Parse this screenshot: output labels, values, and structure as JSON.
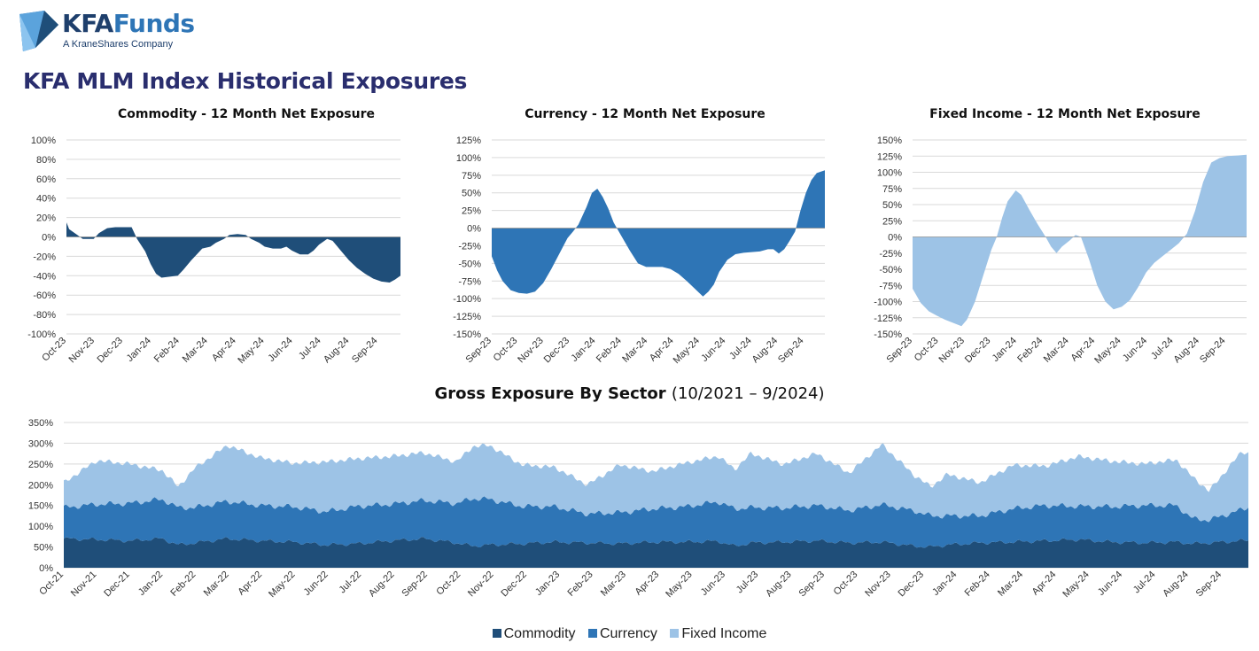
{
  "brand": {
    "logo_kfa": "KFA",
    "logo_funds": "Funds",
    "tagline": "A KraneShares Company"
  },
  "page": {
    "title": "KFA MLM Index Historical Exposures"
  },
  "colors": {
    "commodity": "#1f4e79",
    "currency": "#2e75b6",
    "fixed_income": "#9dc3e6",
    "grid": "#d9d9d9"
  },
  "chart_data": [
    {
      "id": "commodity",
      "type": "area",
      "title": "Commodity - 12 Month Net Exposure",
      "color": "#1f4e79",
      "ylim": [
        -100,
        100
      ],
      "yticks": [
        100,
        80,
        60,
        40,
        20,
        0,
        -20,
        -40,
        -60,
        -80,
        -100
      ],
      "tick_format": "percent",
      "x_tick_labels": [
        "Oct-23",
        "Nov-23",
        "Dec-23",
        "Jan-24",
        "Feb-24",
        "Mar-24",
        "Apr-24",
        "May-24",
        "Jun-24",
        "Jul-24",
        "Aug-24",
        "Sep-24"
      ],
      "x_range": [
        0,
        12.3
      ],
      "grid": true,
      "points": [
        [
          0,
          15
        ],
        [
          0.1,
          8
        ],
        [
          0.4,
          2
        ],
        [
          0.6,
          -2
        ],
        [
          1,
          -2
        ],
        [
          1.2,
          4
        ],
        [
          1.5,
          9
        ],
        [
          1.8,
          10
        ],
        [
          2.1,
          10
        ],
        [
          2.4,
          10
        ],
        [
          2.6,
          -2
        ],
        [
          2.9,
          -15
        ],
        [
          3.1,
          -28
        ],
        [
          3.3,
          -38
        ],
        [
          3.5,
          -42
        ],
        [
          3.8,
          -41
        ],
        [
          4.1,
          -40
        ],
        [
          4.3,
          -34
        ],
        [
          4.6,
          -24
        ],
        [
          4.8,
          -18
        ],
        [
          5.0,
          -12
        ],
        [
          5.3,
          -10
        ],
        [
          5.5,
          -6
        ],
        [
          5.8,
          -2
        ],
        [
          6.0,
          2
        ],
        [
          6.3,
          3
        ],
        [
          6.6,
          2
        ],
        [
          6.8,
          -2
        ],
        [
          7.1,
          -6
        ],
        [
          7.3,
          -10
        ],
        [
          7.6,
          -12
        ],
        [
          7.9,
          -12
        ],
        [
          8.1,
          -10
        ],
        [
          8.3,
          -14
        ],
        [
          8.6,
          -18
        ],
        [
          8.9,
          -18
        ],
        [
          9.1,
          -14
        ],
        [
          9.3,
          -8
        ],
        [
          9.6,
          -2
        ],
        [
          9.8,
          -4
        ],
        [
          10.1,
          -14
        ],
        [
          10.4,
          -24
        ],
        [
          10.7,
          -32
        ],
        [
          11.0,
          -38
        ],
        [
          11.3,
          -43
        ],
        [
          11.6,
          -46
        ],
        [
          11.9,
          -47
        ],
        [
          12.1,
          -44
        ],
        [
          12.3,
          -40
        ]
      ]
    },
    {
      "id": "currency",
      "type": "area",
      "title": "Currency - 12 Month Net Exposure",
      "color": "#2e75b6",
      "ylim": [
        -150,
        125
      ],
      "yticks": [
        125,
        100,
        75,
        50,
        25,
        0,
        -25,
        -50,
        -75,
        -100,
        -125,
        -150
      ],
      "tick_format": "percent",
      "x_tick_labels": [
        "Sep-23",
        "Oct-23",
        "Nov-23",
        "Dec-23",
        "Jan-24",
        "Feb-24",
        "Mar-24",
        "Apr-24",
        "May-24",
        "Jun-24",
        "Jul-24",
        "Aug-24",
        "Sep-24"
      ],
      "x_range": [
        0,
        12.3
      ],
      "grid": true,
      "points": [
        [
          0,
          -40
        ],
        [
          0.2,
          -60
        ],
        [
          0.4,
          -75
        ],
        [
          0.7,
          -88
        ],
        [
          1,
          -92
        ],
        [
          1.3,
          -93
        ],
        [
          1.6,
          -90
        ],
        [
          1.9,
          -78
        ],
        [
          2.2,
          -58
        ],
        [
          2.5,
          -36
        ],
        [
          2.8,
          -14
        ],
        [
          3.0,
          -5
        ],
        [
          3.2,
          5
        ],
        [
          3.5,
          30
        ],
        [
          3.7,
          50
        ],
        [
          3.9,
          56
        ],
        [
          4.1,
          44
        ],
        [
          4.3,
          28
        ],
        [
          4.5,
          8
        ],
        [
          4.8,
          -12
        ],
        [
          5.1,
          -32
        ],
        [
          5.4,
          -50
        ],
        [
          5.7,
          -55
        ],
        [
          6.0,
          -55
        ],
        [
          6.3,
          -55
        ],
        [
          6.6,
          -58
        ],
        [
          6.9,
          -65
        ],
        [
          7.2,
          -75
        ],
        [
          7.5,
          -86
        ],
        [
          7.8,
          -97
        ],
        [
          8.0,
          -90
        ],
        [
          8.2,
          -80
        ],
        [
          8.4,
          -62
        ],
        [
          8.7,
          -45
        ],
        [
          9.0,
          -37
        ],
        [
          9.3,
          -35
        ],
        [
          9.6,
          -34
        ],
        [
          9.9,
          -33
        ],
        [
          10.2,
          -30
        ],
        [
          10.4,
          -30
        ],
        [
          10.6,
          -36
        ],
        [
          10.8,
          -30
        ],
        [
          11.0,
          -18
        ],
        [
          11.2,
          -5
        ],
        [
          11.4,
          25
        ],
        [
          11.6,
          50
        ],
        [
          11.8,
          68
        ],
        [
          12.0,
          78
        ],
        [
          12.3,
          82
        ]
      ]
    },
    {
      "id": "fixed_income",
      "type": "area",
      "title": "Fixed Income - 12 Month Net Exposure",
      "color": "#9dc3e6",
      "ylim": [
        -150,
        150
      ],
      "yticks": [
        150,
        125,
        100,
        75,
        50,
        25,
        0,
        -25,
        -50,
        -75,
        -100,
        -125,
        -150
      ],
      "tick_format": "percent",
      "x_tick_labels": [
        "Sep-23",
        "Oct-23",
        "Nov-23",
        "Dec-23",
        "Jan-24",
        "Feb-24",
        "Mar-24",
        "Apr-24",
        "May-24",
        "Jun-24",
        "Jul-24",
        "Aug-24",
        "Sep-24"
      ],
      "x_range": [
        0,
        12.3
      ],
      "grid": true,
      "points": [
        [
          0,
          -80
        ],
        [
          0.3,
          -102
        ],
        [
          0.6,
          -115
        ],
        [
          0.9,
          -122
        ],
        [
          1.2,
          -128
        ],
        [
          1.5,
          -133
        ],
        [
          1.8,
          -138
        ],
        [
          2.0,
          -128
        ],
        [
          2.3,
          -100
        ],
        [
          2.6,
          -60
        ],
        [
          2.9,
          -20
        ],
        [
          3.1,
          0
        ],
        [
          3.3,
          30
        ],
        [
          3.5,
          55
        ],
        [
          3.8,
          72
        ],
        [
          4.0,
          65
        ],
        [
          4.3,
          42
        ],
        [
          4.6,
          20
        ],
        [
          4.9,
          0
        ],
        [
          5.1,
          -15
        ],
        [
          5.3,
          -25
        ],
        [
          5.5,
          -15
        ],
        [
          5.8,
          -5
        ],
        [
          6.0,
          3
        ],
        [
          6.2,
          0
        ],
        [
          6.5,
          -35
        ],
        [
          6.8,
          -75
        ],
        [
          7.1,
          -100
        ],
        [
          7.4,
          -112
        ],
        [
          7.7,
          -108
        ],
        [
          8.0,
          -98
        ],
        [
          8.3,
          -78
        ],
        [
          8.6,
          -55
        ],
        [
          8.9,
          -40
        ],
        [
          9.2,
          -30
        ],
        [
          9.5,
          -20
        ],
        [
          9.8,
          -10
        ],
        [
          10.1,
          5
        ],
        [
          10.4,
          40
        ],
        [
          10.7,
          85
        ],
        [
          11.0,
          115
        ],
        [
          11.3,
          122
        ],
        [
          11.6,
          125
        ],
        [
          12.0,
          126
        ],
        [
          12.3,
          127
        ]
      ]
    },
    {
      "id": "gross",
      "type": "area",
      "stacked": true,
      "title": "Gross Exposure By Sector",
      "subtitle": "(10/2021 – 9/2024)",
      "ylim": [
        0,
        350
      ],
      "yticks": [
        350,
        300,
        250,
        200,
        150,
        100,
        50,
        0
      ],
      "tick_format": "percent",
      "x_tick_labels": [
        "Oct-21",
        "Nov-21",
        "Dec-21",
        "Jan-22",
        "Feb-22",
        "Mar-22",
        "Apr-22",
        "May-22",
        "Jun-22",
        "Jul-22",
        "Aug-22",
        "Sep-22",
        "Oct-22",
        "Nov-22",
        "Dec-22",
        "Jan-23",
        "Feb-23",
        "Mar-23",
        "Apr-23",
        "May-23",
        "Jun-23",
        "Jul-23",
        "Aug-23",
        "Sep-23",
        "Oct-23",
        "Nov-23",
        "Dec-23",
        "Jan-24",
        "Feb-24",
        "Mar-24",
        "Apr-24",
        "May-24",
        "Jun-24",
        "Jul-24",
        "Aug-24",
        "Sep-24"
      ],
      "x_range": [
        0,
        36.2
      ],
      "grid": true,
      "legend_position": "bottom-center",
      "series": [
        {
          "name": "Commodity",
          "color": "#1f4e79",
          "points": [
            [
              0,
              70
            ],
            [
              1,
              68
            ],
            [
              2,
              65
            ],
            [
              3,
              70
            ],
            [
              3.5,
              55
            ],
            [
              4,
              60
            ],
            [
              5,
              70
            ],
            [
              6,
              65
            ],
            [
              7,
              62
            ],
            [
              8,
              55
            ],
            [
              9,
              58
            ],
            [
              10,
              65
            ],
            [
              11,
              70
            ],
            [
              12,
              60
            ],
            [
              12.5,
              52
            ],
            [
              13,
              55
            ],
            [
              14,
              58
            ],
            [
              15,
              62
            ],
            [
              16,
              60
            ],
            [
              17,
              58
            ],
            [
              18,
              62
            ],
            [
              19,
              62
            ],
            [
              20,
              64
            ],
            [
              20.5,
              52
            ],
            [
              21,
              60
            ],
            [
              22,
              62
            ],
            [
              23,
              65
            ],
            [
              24,
              60
            ],
            [
              25,
              62
            ],
            [
              26,
              52
            ],
            [
              26.5,
              50
            ],
            [
              27,
              55
            ],
            [
              28,
              60
            ],
            [
              29,
              62
            ],
            [
              30,
              65
            ],
            [
              31,
              68
            ],
            [
              32,
              62
            ],
            [
              33,
              60
            ],
            [
              34,
              62
            ],
            [
              34.5,
              58
            ],
            [
              35,
              60
            ],
            [
              36,
              65
            ],
            [
              36.2,
              66
            ]
          ]
        },
        {
          "name": "Currency",
          "color": "#2e75b6",
          "points": [
            [
              0,
              75
            ],
            [
              1,
              85
            ],
            [
              2,
              90
            ],
            [
              3,
              95
            ],
            [
              3.5,
              90
            ],
            [
              4,
              85
            ],
            [
              5,
              90
            ],
            [
              6,
              85
            ],
            [
              7,
              85
            ],
            [
              8,
              80
            ],
            [
              9,
              90
            ],
            [
              10,
              88
            ],
            [
              11,
              92
            ],
            [
              12,
              95
            ],
            [
              12.5,
              115
            ],
            [
              13,
              110
            ],
            [
              14,
              90
            ],
            [
              15,
              85
            ],
            [
              16,
              70
            ],
            [
              17,
              75
            ],
            [
              18,
              80
            ],
            [
              19,
              85
            ],
            [
              20,
              95
            ],
            [
              20.5,
              90
            ],
            [
              21,
              85
            ],
            [
              22,
              82
            ],
            [
              23,
              85
            ],
            [
              24,
              78
            ],
            [
              25,
              90
            ],
            [
              26,
              85
            ],
            [
              26.5,
              75
            ],
            [
              27,
              70
            ],
            [
              28,
              65
            ],
            [
              29,
              80
            ],
            [
              30,
              85
            ],
            [
              31,
              80
            ],
            [
              32,
              85
            ],
            [
              33,
              90
            ],
            [
              34,
              88
            ],
            [
              34.5,
              60
            ],
            [
              35,
              55
            ],
            [
              36,
              75
            ],
            [
              36.2,
              80
            ]
          ]
        },
        {
          "name": "Fixed Income",
          "color": "#9dc3e6",
          "points": [
            [
              0,
              60
            ],
            [
              1,
              105
            ],
            [
              2,
              95
            ],
            [
              3,
              70
            ],
            [
              3.5,
              50
            ],
            [
              4,
              95
            ],
            [
              5,
              135
            ],
            [
              6,
              115
            ],
            [
              7,
              105
            ],
            [
              8,
              120
            ],
            [
              9,
              115
            ],
            [
              10,
              115
            ],
            [
              11,
              115
            ],
            [
              12,
              100
            ],
            [
              12.5,
              125
            ],
            [
              13,
              130
            ],
            [
              14,
              100
            ],
            [
              15,
              95
            ],
            [
              16,
              70
            ],
            [
              17,
              115
            ],
            [
              18,
              90
            ],
            [
              19,
              105
            ],
            [
              20,
              110
            ],
            [
              20.5,
              95
            ],
            [
              21,
              130
            ],
            [
              22,
              105
            ],
            [
              23,
              125
            ],
            [
              24,
              90
            ],
            [
              25,
              145
            ],
            [
              26,
              85
            ],
            [
              26.5,
              70
            ],
            [
              27,
              100
            ],
            [
              28,
              80
            ],
            [
              29,
              105
            ],
            [
              30,
              95
            ],
            [
              31,
              120
            ],
            [
              32,
              110
            ],
            [
              33,
              100
            ],
            [
              34,
              110
            ],
            [
              34.5,
              100
            ],
            [
              35,
              70
            ],
            [
              36,
              140
            ],
            [
              36.2,
              130
            ]
          ]
        }
      ]
    }
  ]
}
